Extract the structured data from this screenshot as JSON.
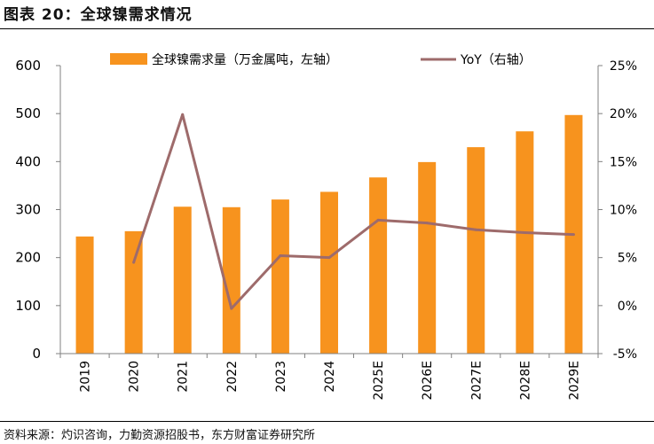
{
  "figure": {
    "title": "图表 20：全球镍需求情况",
    "source": "资料来源：灼识咨询，力勤资源招股书，东方财富证券研究所"
  },
  "colors": {
    "bar": "#F7931E",
    "line": "#9E6B6B",
    "axis": "#808080"
  },
  "chart_data": {
    "type": "bar",
    "categories": [
      "2019",
      "2020",
      "2021",
      "2022",
      "2023",
      "2024",
      "2025E",
      "2026E",
      "2027E",
      "2028E",
      "2029E"
    ],
    "series": [
      {
        "name": "全球镍需求量（万金属吨，左轴）",
        "type": "bar",
        "axis": "left",
        "values": [
          244,
          255,
          306,
          305,
          321,
          337,
          367,
          399,
          430,
          463,
          497
        ]
      },
      {
        "name": "YoY（右轴）",
        "type": "line",
        "axis": "right",
        "values": [
          null,
          4.5,
          19.9,
          -0.3,
          5.2,
          5.0,
          8.9,
          8.6,
          7.9,
          7.6,
          7.4
        ]
      }
    ],
    "left_axis": {
      "ylim": [
        0,
        600
      ],
      "ticks": [
        "0",
        "100",
        "200",
        "300",
        "400",
        "500",
        "600"
      ]
    },
    "right_axis": {
      "ylim": [
        -5,
        25
      ],
      "ticks": [
        "-5%",
        "0%",
        "5%",
        "10%",
        "15%",
        "20%",
        "25%"
      ]
    },
    "legend_position": "top",
    "grid": false
  }
}
